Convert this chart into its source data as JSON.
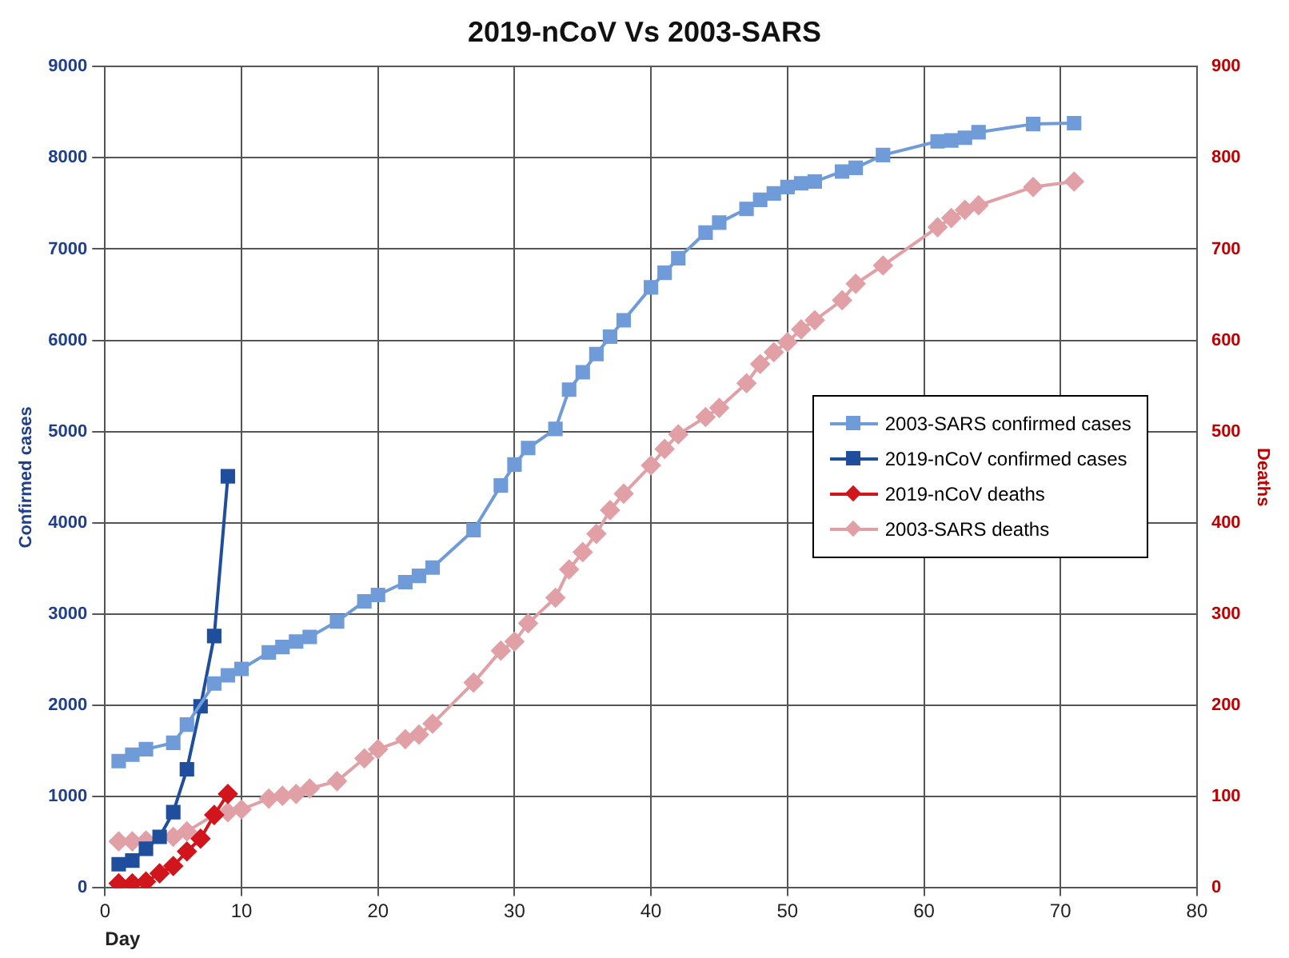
{
  "chart_data": {
    "type": "line",
    "title": "2019-nCoV Vs 2003-SARS",
    "xlabel": "Day",
    "ylabel": "Confirmed cases",
    "y2label": "Deaths",
    "xlim": [
      0,
      80
    ],
    "xticks": [
      0,
      10,
      20,
      30,
      40,
      50,
      60,
      70,
      80
    ],
    "ylim": [
      0,
      9000
    ],
    "yticks": [
      0,
      1000,
      2000,
      3000,
      4000,
      5000,
      6000,
      7000,
      8000,
      9000
    ],
    "y2lim": [
      0,
      900
    ],
    "y2ticks": [
      0,
      100,
      200,
      300,
      400,
      500,
      600,
      700,
      800,
      900
    ],
    "grid": true,
    "legend": "right",
    "line_style": "solid",
    "series": [
      {
        "name": "2003-SARS confirmed cases",
        "color": "#6f9bd8",
        "marker": "square",
        "x": [
          1,
          2,
          3,
          5,
          6,
          8,
          9,
          10,
          12,
          13,
          14,
          15,
          17,
          19,
          20,
          22,
          23,
          24,
          27,
          29,
          30,
          31,
          33,
          34,
          35,
          36,
          37,
          38,
          40,
          41,
          42,
          44,
          45,
          47,
          48,
          49,
          50,
          51,
          52,
          54,
          55,
          57,
          61,
          62,
          63,
          64,
          68,
          71
        ],
        "values": [
          1390,
          1460,
          1520,
          1590,
          1790,
          2240,
          2330,
          2400,
          2580,
          2640,
          2700,
          2750,
          2920,
          3140,
          3210,
          3350,
          3420,
          3510,
          3920,
          4410,
          4640,
          4820,
          5030,
          5460,
          5650,
          5850,
          6040,
          6220,
          6580,
          6740,
          6900,
          7180,
          7290,
          7440,
          7540,
          7610,
          7680,
          7720,
          7740,
          7850,
          7890,
          8030,
          8180,
          8190,
          8220,
          8280,
          8370,
          8380
        ]
      },
      {
        "name": "2019-nCoV confirmed cases",
        "color": "#1f4e9c",
        "marker": "square",
        "x": [
          1,
          2,
          3,
          4,
          5,
          6,
          7,
          8,
          9
        ],
        "values": [
          260,
          300,
          430,
          560,
          830,
          1300,
          1990,
          2760,
          4510
        ]
      },
      {
        "name": "2019-nCoV deaths",
        "color": "#d0161c",
        "marker": "diamond",
        "axis": "y2",
        "x": [
          1,
          2,
          3,
          4,
          5,
          6,
          7,
          8,
          9
        ],
        "values": [
          5,
          5,
          7,
          16,
          24,
          40,
          54,
          80,
          103
        ]
      },
      {
        "name": "2003-SARS deaths",
        "color": "#e0a0a6",
        "marker": "diamond",
        "axis": "y2",
        "x": [
          1,
          2,
          3,
          5,
          6,
          8,
          9,
          10,
          12,
          13,
          14,
          15,
          17,
          19,
          20,
          22,
          23,
          24,
          27,
          29,
          30,
          31,
          33,
          34,
          35,
          36,
          37,
          38,
          40,
          41,
          42,
          44,
          45,
          47,
          48,
          49,
          50,
          51,
          52,
          54,
          55,
          57,
          61,
          62,
          63,
          64,
          68,
          71
        ],
        "values": [
          51,
          51,
          52,
          56,
          62,
          80,
          83,
          86,
          98,
          101,
          103,
          109,
          117,
          142,
          152,
          163,
          168,
          180,
          225,
          260,
          270,
          290,
          318,
          349,
          368,
          388,
          414,
          432,
          463,
          481,
          497,
          516,
          526,
          553,
          574,
          587,
          598,
          612,
          622,
          644,
          662,
          682,
          724,
          734,
          743,
          748,
          768,
          774
        ]
      }
    ]
  }
}
